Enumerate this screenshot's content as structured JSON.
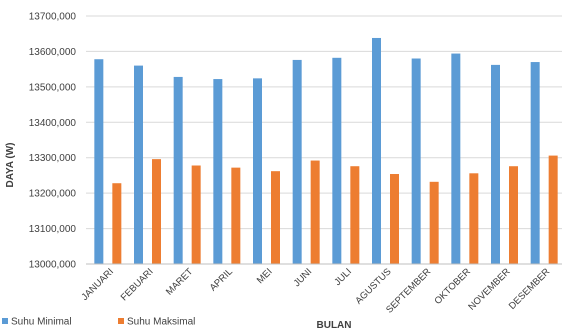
{
  "chart_data": {
    "type": "bar",
    "title": "",
    "xlabel": "BULAN",
    "ylabel": "DAYA (W)",
    "ylim": [
      13000,
      13700
    ],
    "yticks": [
      13000,
      13100,
      13200,
      13300,
      13400,
      13500,
      13600,
      13700
    ],
    "ytick_labels": [
      "13000,000",
      "13100,000",
      "13200,000",
      "13300,000",
      "13400,000",
      "13500,000",
      "13600,000",
      "13700,000"
    ],
    "grid": true,
    "legend_position": "bottom-left",
    "categories": [
      "JANUARI",
      "FEBUARI",
      "MARET",
      "APRIL",
      "MEI",
      "JUNI",
      "JULI",
      "AGUSTUS",
      "SEPTEMBER",
      "OKTOBER",
      "NOVEMBER",
      "DESEMBER"
    ],
    "series": [
      {
        "name": "Suhu Minimal",
        "color": "#5B9BD5",
        "values": [
          13578,
          13560,
          13528,
          13522,
          13524,
          13576,
          13582,
          13638,
          13580,
          13594,
          13562,
          13570
        ]
      },
      {
        "name": "Suhu Maksimal",
        "color": "#ED7D31",
        "values": [
          13228,
          13296,
          13278,
          13272,
          13262,
          13292,
          13276,
          13254,
          13232,
          13256,
          13276,
          13306
        ]
      }
    ]
  }
}
